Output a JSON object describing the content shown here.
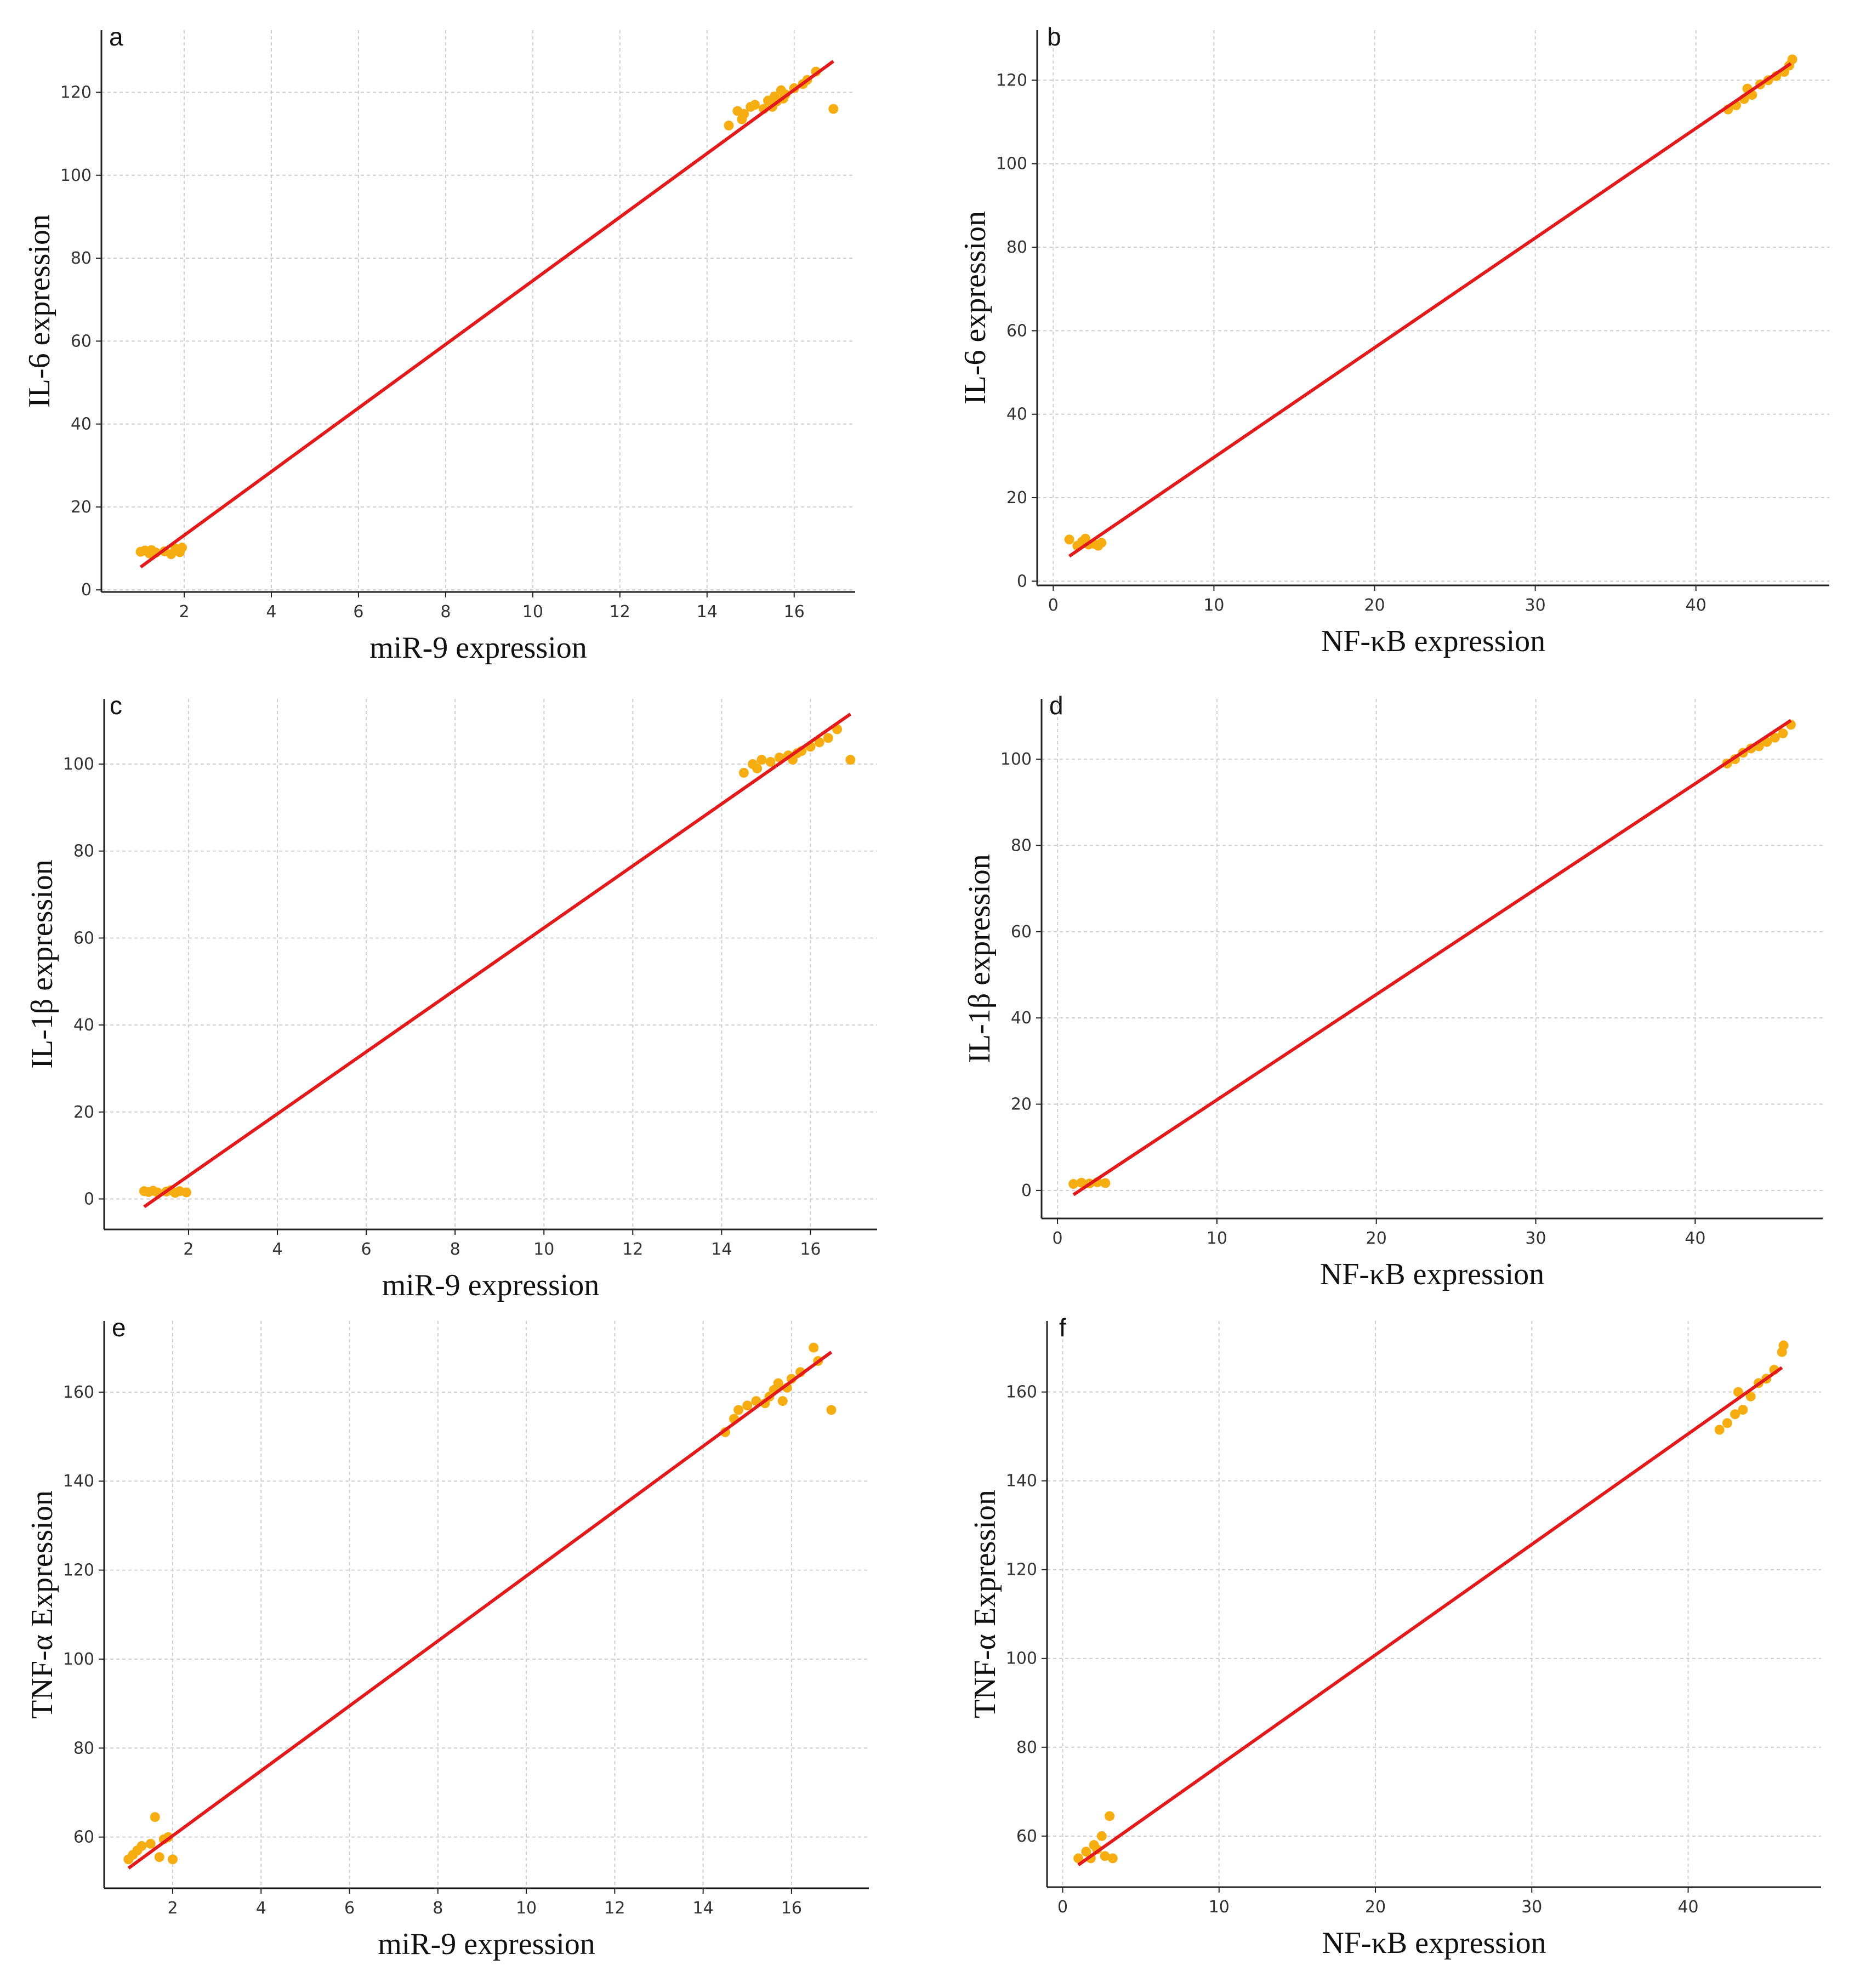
{
  "colors": {
    "points": "#f6ad12",
    "fit_line": "#e31a1c",
    "grid": "#cfcfcf",
    "axis": "#222222"
  },
  "chart_data": [
    {
      "panel": "a",
      "type": "scatter",
      "xlabel": "miR-9 expression",
      "ylabel": "IL-6 expression",
      "xlim": [
        0.1,
        17.4
      ],
      "ylim": [
        -0.5,
        135
      ],
      "xticks": [
        2,
        4,
        6,
        8,
        10,
        12,
        14,
        16
      ],
      "yticks": [
        0,
        20,
        40,
        60,
        80,
        100,
        120
      ],
      "fit": {
        "x": [
          1.0,
          16.9
        ],
        "y": [
          5.5,
          127.5
        ]
      },
      "points": {
        "x": [
          1.0,
          1.1,
          1.2,
          1.25,
          1.35,
          1.55,
          1.7,
          1.8,
          1.9,
          1.95,
          14.5,
          14.7,
          14.8,
          14.85,
          15.0,
          15.1,
          15.3,
          15.4,
          15.5,
          15.55,
          15.6,
          15.7,
          15.75,
          15.8,
          16.0,
          16.2,
          16.3,
          16.5,
          16.9
        ],
        "y": [
          9.2,
          9.5,
          8.8,
          9.6,
          9.0,
          9.3,
          8.6,
          10.0,
          9.1,
          10.2,
          112.0,
          115.5,
          113.5,
          114.8,
          116.5,
          117.0,
          116.0,
          118.0,
          116.5,
          119.0,
          117.8,
          120.5,
          118.5,
          119.5,
          121.0,
          122.0,
          123.0,
          125.0,
          116.0
        ]
      }
    },
    {
      "panel": "b",
      "type": "scatter",
      "xlabel": "NF-κB expression",
      "ylabel": "IL-6 expression",
      "xlim": [
        -1,
        48.3
      ],
      "ylim": [
        -1,
        132
      ],
      "xticks": [
        0,
        10,
        20,
        30,
        40
      ],
      "yticks": [
        0,
        20,
        40,
        60,
        80,
        100,
        120
      ],
      "fit": {
        "x": [
          1.0,
          45.9
        ],
        "y": [
          6.0,
          124.0
        ]
      },
      "points": {
        "x": [
          1.0,
          1.5,
          1.8,
          2.0,
          2.2,
          2.5,
          2.8,
          3.0,
          42.0,
          42.5,
          43.0,
          43.2,
          43.5,
          44.0,
          44.5,
          45.0,
          45.5,
          45.8,
          46.0
        ],
        "y": [
          10.0,
          8.5,
          9.5,
          10.2,
          8.8,
          9.0,
          8.5,
          9.2,
          113.0,
          114.0,
          115.5,
          118.0,
          116.5,
          119.0,
          120.0,
          121.0,
          122.0,
          123.5,
          125.0
        ]
      }
    },
    {
      "panel": "c",
      "type": "scatter",
      "xlabel": "miR-9 expression",
      "ylabel": "IL-1β expression",
      "xlim": [
        0.1,
        17.5
      ],
      "ylim": [
        -7,
        115
      ],
      "xticks": [
        2,
        4,
        6,
        8,
        10,
        12,
        14,
        16
      ],
      "yticks": [
        0,
        20,
        40,
        60,
        80,
        100
      ],
      "fit": {
        "x": [
          1.0,
          16.9
        ],
        "y": [
          -1.8,
          111.5
        ]
      },
      "points": {
        "x": [
          1.0,
          1.1,
          1.2,
          1.3,
          1.5,
          1.6,
          1.7,
          1.8,
          1.95,
          14.5,
          14.7,
          14.8,
          14.9,
          15.1,
          15.3,
          15.5,
          15.6,
          15.7,
          15.8,
          16.0,
          16.2,
          16.4,
          16.6,
          16.9
        ],
        "y": [
          1.8,
          1.6,
          1.9,
          1.5,
          1.7,
          2.0,
          1.4,
          1.8,
          1.5,
          98.0,
          100.0,
          99.0,
          101.0,
          100.5,
          101.5,
          102.0,
          101.0,
          102.5,
          103.0,
          104.0,
          105.0,
          106.0,
          108.0,
          101.0
        ]
      }
    },
    {
      "panel": "d",
      "type": "scatter",
      "xlabel": "NF-κB expression",
      "ylabel": "IL-1β expression",
      "xlim": [
        -1,
        48
      ],
      "ylim": [
        -6.5,
        114
      ],
      "xticks": [
        0,
        10,
        20,
        30,
        40
      ],
      "yticks": [
        0,
        20,
        40,
        60,
        80,
        100
      ],
      "fit": {
        "x": [
          1.0,
          46.0
        ],
        "y": [
          -1.0,
          109.0
        ]
      },
      "points": {
        "x": [
          1.0,
          1.5,
          2.0,
          2.5,
          3.0,
          42.0,
          42.5,
          43.0,
          43.5,
          44.0,
          44.5,
          45.0,
          45.5,
          46.0
        ],
        "y": [
          1.5,
          1.8,
          1.6,
          1.9,
          1.7,
          99.0,
          100.0,
          101.5,
          102.5,
          103.0,
          104.0,
          105.0,
          106.0,
          108.0
        ]
      }
    },
    {
      "panel": "e",
      "type": "scatter",
      "xlabel": "miR-9 expression",
      "ylabel": "TNF-α Expression",
      "xlim": [
        0.45,
        17.75
      ],
      "ylim": [
        48.5,
        176
      ],
      "xticks": [
        2,
        4,
        6,
        8,
        10,
        12,
        14,
        16
      ],
      "yticks": [
        60,
        80,
        100,
        120,
        140,
        160
      ],
      "fit": {
        "x": [
          1.0,
          16.9
        ],
        "y": [
          53.0,
          169.0
        ]
      },
      "points": {
        "x": [
          1.0,
          1.1,
          1.2,
          1.3,
          1.5,
          1.6,
          1.7,
          1.8,
          1.9,
          2.0,
          14.5,
          14.7,
          14.8,
          15.0,
          15.2,
          15.4,
          15.5,
          15.6,
          15.7,
          15.8,
          15.9,
          16.0,
          16.2,
          16.5,
          16.6,
          16.9
        ],
        "y": [
          55.0,
          56.0,
          57.0,
          58.0,
          58.5,
          64.5,
          55.5,
          59.5,
          60.0,
          55.0,
          151.0,
          154.0,
          156.0,
          157.0,
          158.0,
          157.5,
          159.0,
          160.5,
          162.0,
          158.0,
          161.0,
          163.0,
          164.5,
          170.0,
          167.0,
          156.0
        ]
      }
    },
    {
      "panel": "f",
      "type": "scatter",
      "xlabel": "NF-κB expression",
      "ylabel": "TNF-α Expression",
      "xlim": [
        -1,
        48.5
      ],
      "ylim": [
        48.5,
        176
      ],
      "xticks": [
        0,
        10,
        20,
        30,
        40
      ],
      "yticks": [
        60,
        80,
        100,
        120,
        140,
        160
      ],
      "fit": {
        "x": [
          1.0,
          46.0
        ],
        "y": [
          53.5,
          165.5
        ]
      },
      "points": {
        "x": [
          1.0,
          1.5,
          1.8,
          2.0,
          2.2,
          2.5,
          2.7,
          3.0,
          3.2,
          42.0,
          42.5,
          43.0,
          43.2,
          43.5,
          44.0,
          44.5,
          45.0,
          45.5,
          46.0,
          46.1
        ],
        "y": [
          55.0,
          56.5,
          55.0,
          58.0,
          57.0,
          60.0,
          55.5,
          64.5,
          55.0,
          151.5,
          153.0,
          155.0,
          160.0,
          156.0,
          159.0,
          162.0,
          163.0,
          165.0,
          169.0,
          170.5
        ]
      }
    }
  ]
}
